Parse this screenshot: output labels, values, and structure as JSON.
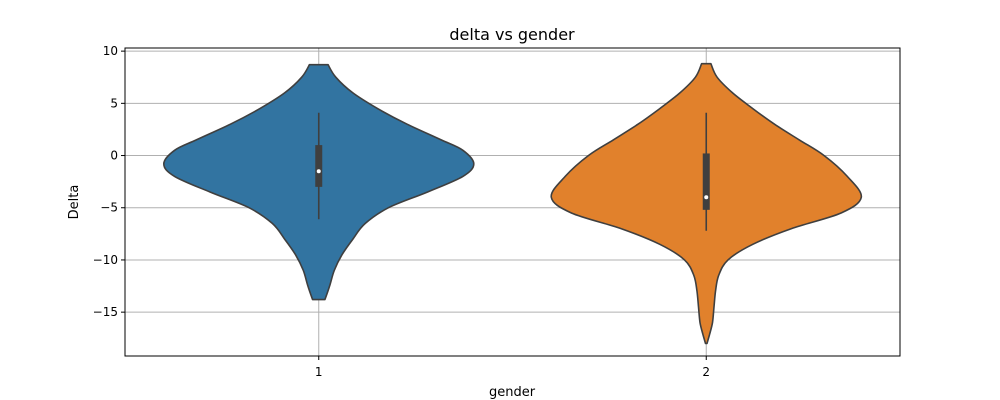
{
  "chart_data": {
    "type": "violin",
    "title": "delta vs gender",
    "xlabel": "gender",
    "ylabel": "Delta",
    "categories": [
      "1",
      "2"
    ],
    "ylim": [
      -19.2,
      10.3
    ],
    "yticks": [
      10,
      5,
      0,
      -5,
      -10,
      -15
    ],
    "grid": true,
    "series": [
      {
        "category": "1",
        "color": "#3274a1",
        "min": -13.8,
        "max": 8.7,
        "median": -1.5,
        "q1": -3.0,
        "q3": 1.0,
        "whisker_low": -6.1,
        "whisker_high": 4.1,
        "density_profile": [
          [
            8.7,
            0.06
          ],
          [
            7.5,
            0.11
          ],
          [
            6.0,
            0.22
          ],
          [
            4.5,
            0.38
          ],
          [
            3.0,
            0.57
          ],
          [
            1.5,
            0.79
          ],
          [
            0.5,
            0.93
          ],
          [
            -0.8,
            1.0
          ],
          [
            -2.0,
            0.93
          ],
          [
            -3.5,
            0.7
          ],
          [
            -5.0,
            0.45
          ],
          [
            -6.5,
            0.3
          ],
          [
            -8.0,
            0.22
          ],
          [
            -9.5,
            0.15
          ],
          [
            -11.0,
            0.1
          ],
          [
            -12.5,
            0.07
          ],
          [
            -13.8,
            0.04
          ]
        ]
      },
      {
        "category": "2",
        "color": "#e1812c",
        "min": -18.0,
        "max": 8.8,
        "median": -4.0,
        "q1": -5.2,
        "q3": 0.2,
        "whisker_low": -7.2,
        "whisker_high": 4.1,
        "density_profile": [
          [
            8.8,
            0.03
          ],
          [
            7.5,
            0.07
          ],
          [
            6.0,
            0.17
          ],
          [
            4.5,
            0.3
          ],
          [
            3.0,
            0.44
          ],
          [
            1.5,
            0.6
          ],
          [
            0.0,
            0.76
          ],
          [
            -2.0,
            0.91
          ],
          [
            -4.0,
            1.0
          ],
          [
            -5.5,
            0.87
          ],
          [
            -7.0,
            0.55
          ],
          [
            -8.5,
            0.3
          ],
          [
            -10.0,
            0.14
          ],
          [
            -11.5,
            0.08
          ],
          [
            -13.0,
            0.06
          ],
          [
            -14.5,
            0.05
          ],
          [
            -16.0,
            0.04
          ],
          [
            -17.2,
            0.02
          ],
          [
            -18.0,
            0.005
          ]
        ]
      }
    ]
  }
}
